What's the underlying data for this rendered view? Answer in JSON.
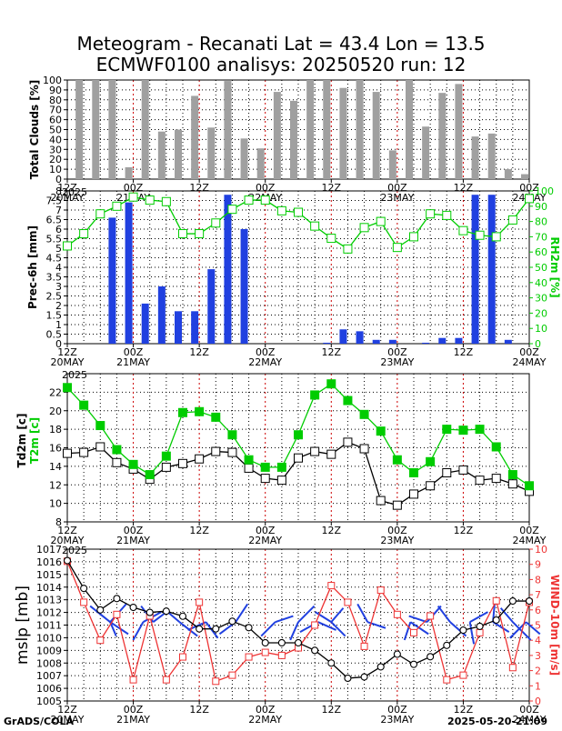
{
  "title": {
    "line1": "Meteogram - Recanati Lat = 43.4 Lon = 13.5",
    "line2": "ECMWF0100 analisys: 20250520 run: 12"
  },
  "footer": {
    "left": "GrADS/COLA",
    "right": "2025-05-20-21:09"
  },
  "colors": {
    "blue": "#2040e0",
    "green": "#00cc00",
    "red": "#ee3333",
    "grey": "#a0a0a0",
    "gridRed": "#cc0000",
    "gridBlack": "#000000"
  },
  "time_axis": {
    "labels": [
      {
        "t": 0,
        "hour": "12Z",
        "date": "20MAY"
      },
      {
        "t": 2,
        "hour": "00Z",
        "date": "21MAY"
      },
      {
        "t": 4,
        "hour": "12Z",
        "date": ""
      },
      {
        "t": 6,
        "hour": "00Z",
        "date": "22MAY"
      },
      {
        "t": 8,
        "hour": "12Z",
        "date": ""
      },
      {
        "t": 10,
        "hour": "00Z",
        "date": "23MAY"
      },
      {
        "t": 12,
        "hour": "12Z",
        "date": ""
      },
      {
        "t": 14,
        "hour": "00Z",
        "date": "24MAY"
      }
    ],
    "year": "2025",
    "t_max": 14
  },
  "chart_data": [
    {
      "id": "clouds",
      "type": "bar",
      "ylabel": "Total Clouds [%]",
      "ylim": [
        0,
        100
      ],
      "yticks": [
        0,
        10,
        20,
        30,
        40,
        50,
        60,
        70,
        80,
        90,
        100
      ],
      "x": [
        0.5,
        1,
        1.5,
        2,
        2.5,
        3,
        3.5,
        4,
        4.5,
        5,
        5.5,
        6,
        6.5,
        7,
        7.5,
        8,
        8.5,
        9,
        9.5,
        10,
        10.5,
        11,
        11.5,
        12,
        12.5,
        13,
        13.5,
        14
      ],
      "values": [
        100,
        100,
        100,
        12,
        100,
        48,
        50,
        84,
        52,
        99,
        41,
        31,
        88,
        79,
        100,
        100,
        92,
        100,
        88,
        29,
        100,
        53,
        87,
        96,
        43,
        46,
        10,
        5
      ]
    },
    {
      "id": "prec",
      "type": "bar+line",
      "ylabel": "Prec-6h [mm]",
      "ylabel_right": "RH2m [%]",
      "ylim": [
        0,
        8
      ],
      "yticks": [
        0,
        0.5,
        1,
        1.5,
        2,
        2.5,
        3,
        3.5,
        4,
        4.5,
        5,
        5.5,
        6,
        6.5,
        7,
        7.5,
        8
      ],
      "ylim_right": [
        0,
        100
      ],
      "yticks_right": [
        0,
        10,
        20,
        30,
        40,
        50,
        60,
        70,
        80,
        90,
        100
      ],
      "precip_x": [
        1.5,
        2,
        2.5,
        3,
        3.5,
        4,
        4.5,
        5,
        5.5,
        6,
        6.5,
        7,
        7.5,
        8,
        8.5,
        9,
        9.5,
        10,
        10.5,
        11,
        11.5,
        12,
        12.5,
        13,
        13.5,
        14
      ],
      "precip": [
        6.6,
        7.4,
        2.1,
        3.0,
        1.7,
        1.7,
        3.9,
        7.8,
        6.0,
        0,
        0,
        0,
        0,
        0.05,
        0.75,
        0.65,
        0.2,
        0.2,
        0,
        0.05,
        0.3,
        0.3,
        7.8,
        7.8,
        0.2,
        0
      ],
      "rh_x": [
        0,
        0.5,
        1,
        1.5,
        2,
        2.5,
        3,
        3.5,
        4,
        4.5,
        5,
        5.5,
        6,
        6.5,
        7,
        7.5,
        8,
        8.5,
        9,
        9.5,
        10,
        10.5,
        11,
        11.5,
        12,
        12.5,
        13,
        13.5,
        14
      ],
      "rh": [
        64,
        72,
        85,
        90,
        96,
        94,
        93,
        72,
        72,
        79,
        88,
        94,
        94,
        87,
        86,
        77,
        69,
        62,
        76,
        80,
        63,
        70,
        85,
        84,
        74,
        71,
        70,
        81,
        95
      ]
    },
    {
      "id": "temp",
      "type": "line",
      "ylabel": "Td2m [c]",
      "ylabel2": "T2m [c]",
      "ylim": [
        8,
        24
      ],
      "yticks": [
        8,
        10,
        12,
        14,
        16,
        18,
        20,
        22
      ],
      "x": [
        0,
        0.5,
        1,
        1.5,
        2,
        2.5,
        3,
        3.5,
        4,
        4.5,
        5,
        5.5,
        6,
        6.5,
        7,
        7.5,
        8,
        8.5,
        9,
        9.5,
        10,
        10.5,
        11,
        11.5,
        12,
        12.5,
        13,
        13.5,
        14
      ],
      "t2m": [
        22.5,
        20.6,
        18.4,
        15.8,
        14.2,
        13.1,
        15.1,
        19.8,
        19.9,
        19.3,
        17.4,
        14.7,
        13.9,
        13.9,
        17.4,
        21.7,
        22.9,
        21.1,
        19.6,
        17.8,
        14.7,
        13.3,
        14.5,
        18.0,
        17.9,
        18.0,
        16.1,
        13.1,
        11.9
      ],
      "td2m": [
        15.4,
        15.5,
        16.1,
        14.4,
        13.7,
        12.6,
        13.9,
        14.3,
        14.8,
        15.6,
        15.5,
        13.8,
        12.7,
        12.5,
        14.9,
        15.6,
        15.3,
        16.6,
        15.9,
        10.3,
        9.8,
        11.0,
        11.9,
        13.3,
        13.6,
        12.5,
        12.7,
        12.1,
        11.3
      ]
    },
    {
      "id": "mslp",
      "type": "line",
      "ylabel": "mslp [mb]",
      "ylabel_right": "WIND-10m [m/s]",
      "ylim": [
        1005,
        1017
      ],
      "yticks": [
        1005,
        1006,
        1007,
        1008,
        1009,
        1010,
        1011,
        1012,
        1013,
        1014,
        1015,
        1016,
        1017
      ],
      "ylim_right": [
        0,
        10
      ],
      "yticks_right": [
        0,
        1,
        2,
        3,
        4,
        5,
        6,
        7,
        8,
        9,
        10
      ],
      "x": [
        0,
        0.5,
        1,
        1.5,
        2,
        2.5,
        3,
        3.5,
        4,
        4.5,
        5,
        5.5,
        6,
        6.5,
        7,
        7.5,
        8,
        8.5,
        9,
        9.5,
        10,
        10.5,
        11,
        11.5,
        12,
        12.5,
        13,
        13.5,
        14
      ],
      "mslp": [
        1016.1,
        1013.9,
        1012.2,
        1013.1,
        1012.4,
        1012.0,
        1012.1,
        1011.7,
        1010.7,
        1010.7,
        1011.3,
        1010.8,
        1009.6,
        1009.6,
        1009.6,
        1009.0,
        1008.0,
        1006.8,
        1006.9,
        1007.7,
        1008.7,
        1007.9,
        1008.5,
        1009.4,
        1010.6,
        1010.9,
        1011.4,
        1012.9,
        1012.9
      ],
      "wind": [
        9.2,
        6.5,
        4.0,
        5.7,
        1.4,
        5.6,
        1.4,
        2.9,
        6.5,
        1.3,
        1.7,
        2.9,
        3.2,
        3.0,
        3.5,
        5.0,
        7.6,
        6.5,
        3.6,
        7.3,
        5.7,
        4.5,
        5.6,
        1.4,
        1.7,
        4.5,
        6.6,
        2.2,
        6.5
      ],
      "barbs": [
        {
          "x": 1.3,
          "d": [
            [
              -1,
              -0.8
            ],
            [
              0.3,
              0.7
            ],
            [
              0.8,
              -0.9
            ],
            [
              0.9,
              0.6
            ]
          ]
        },
        {
          "x": 2.3,
          "d": [
            [
              -0.5,
              0.9
            ],
            [
              0.9,
              -0.5
            ]
          ]
        },
        {
          "x": 2.6,
          "d": [
            [
              0.8,
              -0.6
            ],
            [
              -0.6,
              -0.8
            ]
          ]
        },
        {
          "x": 3.4,
          "d": [
            [
              0.9,
              0.7
            ],
            [
              -0.7,
              -0.6
            ]
          ]
        },
        {
          "x": 4.2,
          "d": [
            [
              0.6,
              0.8
            ],
            [
              -0.9,
              0.4
            ]
          ]
        },
        {
          "x": 5.1,
          "d": [
            [
              -0.8,
              0.6
            ],
            [
              0.6,
              -0.9
            ]
          ]
        },
        {
          "x": 6.3,
          "d": [
            [
              0.9,
              -0.3
            ],
            [
              -0.7,
              0.7
            ]
          ]
        },
        {
          "x": 7.0,
          "d": [
            [
              0.8,
              -0.8
            ],
            [
              -0.4,
              0.9
            ]
          ]
        },
        {
          "x": 7.6,
          "d": [
            [
              0.9,
              0.4
            ],
            [
              -0.9,
              0.5
            ]
          ]
        },
        {
          "x": 8.0,
          "d": [
            [
              -0.8,
              -0.5
            ],
            [
              0.7,
              0.7
            ],
            [
              0.6,
              -0.7
            ]
          ]
        },
        {
          "x": 9.1,
          "d": [
            [
              0.9,
              0.3
            ],
            [
              -0.5,
              -0.9
            ]
          ]
        },
        {
          "x": 10.4,
          "d": [
            [
              0.9,
              0.6
            ],
            [
              -0.3,
              0.9
            ]
          ]
        },
        {
          "x": 10.9,
          "d": [
            [
              0.7,
              -0.8
            ],
            [
              -0.9,
              -0.3
            ]
          ]
        },
        {
          "x": 11.6,
          "d": [
            [
              0.8,
              0.7
            ],
            [
              -0.6,
              -0.8
            ]
          ]
        },
        {
          "x": 12.2,
          "d": [
            [
              0.2,
              1.1
            ],
            [
              0.9,
              -0.5
            ]
          ]
        },
        {
          "x": 12.9,
          "d": [
            [
              0.1,
              -1.1
            ],
            [
              0.8,
              0.5
            ]
          ]
        },
        {
          "x": 13.5,
          "d": [
            [
              0.9,
              0.9
            ],
            [
              -0.6,
              -0.7
            ]
          ]
        },
        {
          "x": 13.9,
          "d": [
            [
              -0.8,
              0.8
            ],
            [
              0.7,
              0.6
            ]
          ]
        }
      ]
    }
  ]
}
